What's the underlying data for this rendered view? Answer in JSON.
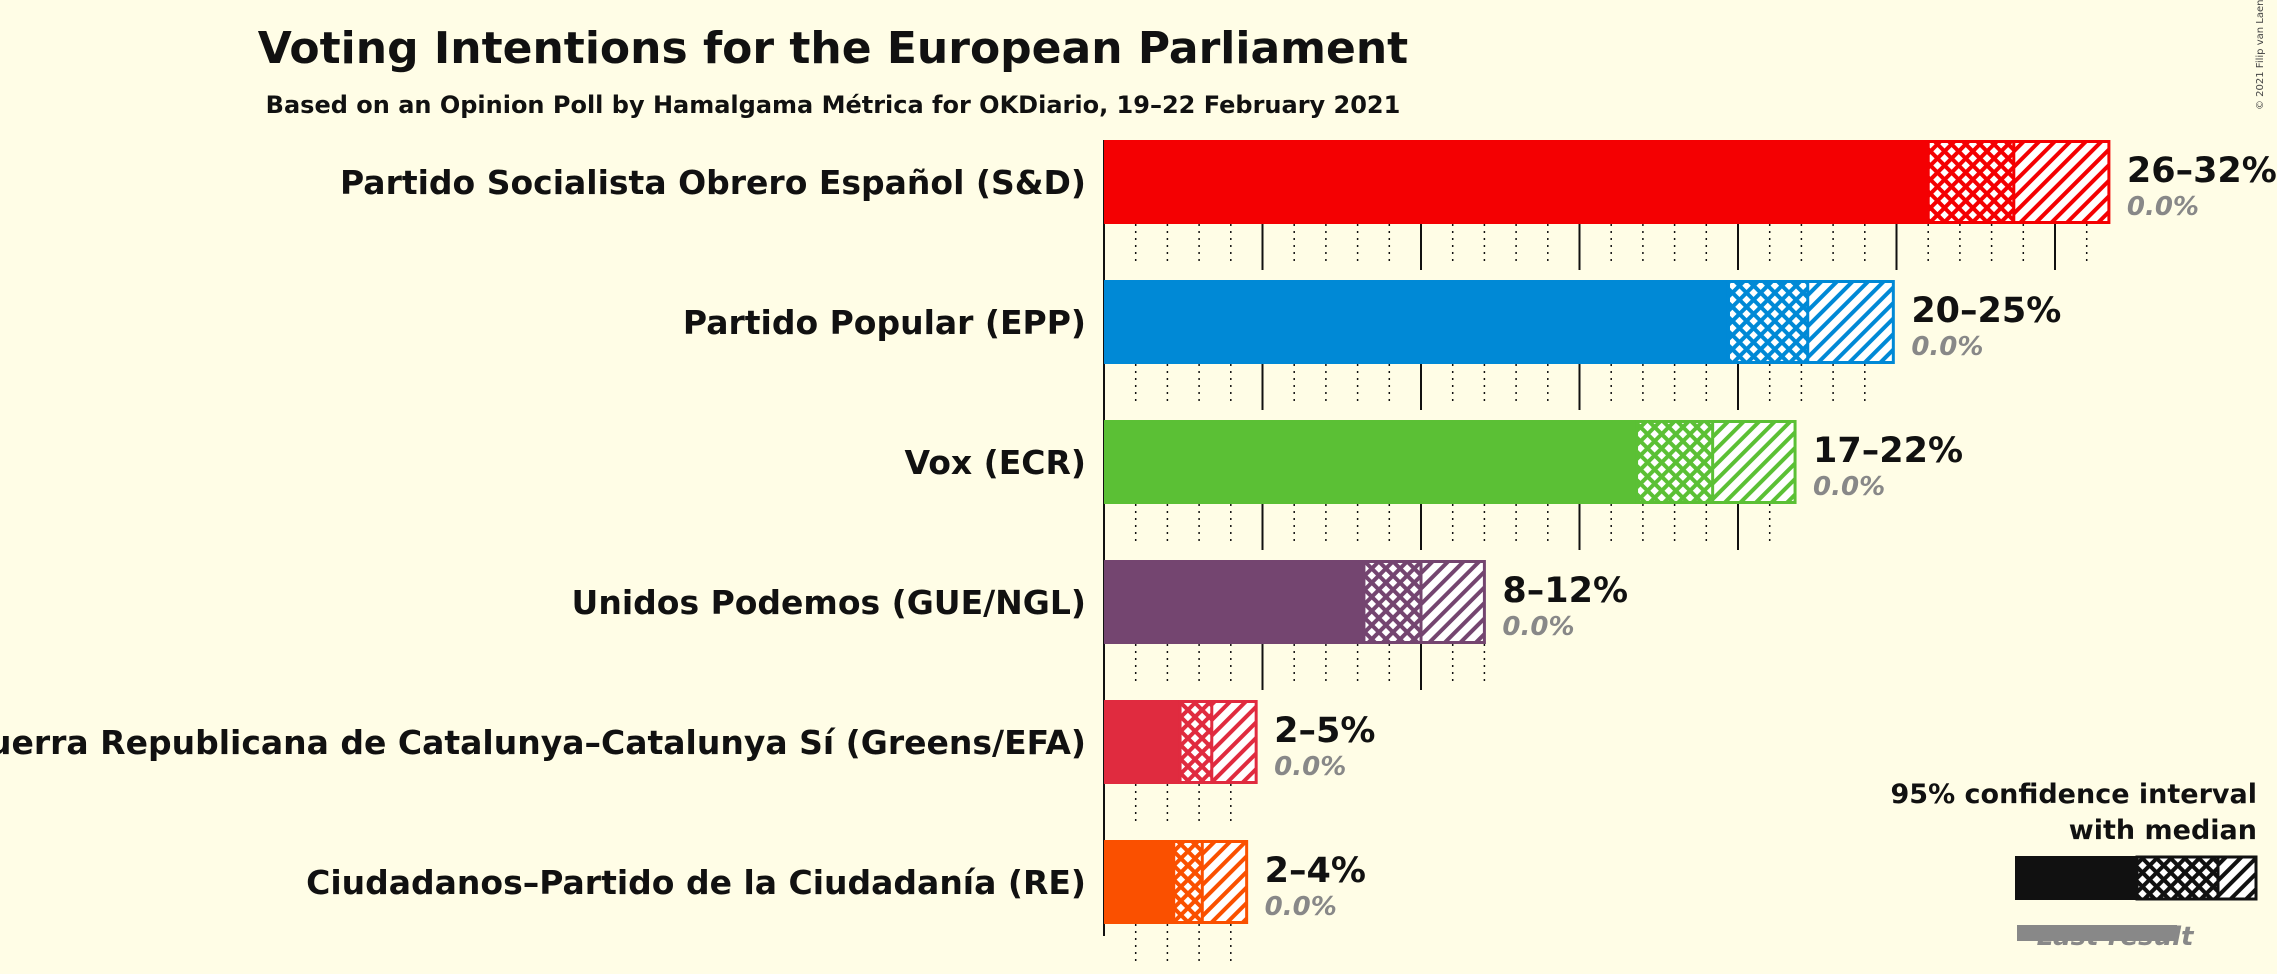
{
  "copyright": "© 2021 Filip van Laenen",
  "chart_data": {
    "type": "bar",
    "title": "Voting Intentions for the European Parliament",
    "subtitle": "Based on an Opinion Poll by Hamalgama Métrica for OKDiario, 19–22 February 2021",
    "xlim": [
      0,
      32
    ],
    "grid": true,
    "legend": {
      "placement": "bottom-right",
      "ci_label_line1": "95% confidence interval",
      "ci_label_line2": "with median",
      "last_result_label": "Last result"
    },
    "series": [
      {
        "party": "Partido Socialista Obrero Español (S&D)",
        "color": "#f40002",
        "low": 26,
        "median": 28.7,
        "high": 31.7,
        "range_label": "26–32%",
        "last_result": 0.0,
        "last_label": "0.0%"
      },
      {
        "party": "Partido Popular (EPP)",
        "color": "#0089d6",
        "low": 19.7,
        "median": 22.2,
        "high": 24.9,
        "range_label": "20–25%",
        "last_result": 0.0,
        "last_label": "0.0%"
      },
      {
        "party": "Vox (ECR)",
        "color": "#5bc035",
        "low": 16.8,
        "median": 19.2,
        "high": 21.8,
        "range_label": "17–22%",
        "last_result": 0.0,
        "last_label": "0.0%"
      },
      {
        "party": "Unidos Podemos (GUE/NGL)",
        "color": "#744570",
        "low": 8.2,
        "median": 10.0,
        "high": 12.0,
        "range_label": "8–12%",
        "last_result": 0.0,
        "last_label": "0.0%"
      },
      {
        "party": "Esquerra Republicana de Catalunya–Catalunya Sí (Greens/EFA)",
        "color": "#e02b3f",
        "low": 2.4,
        "median": 3.4,
        "high": 4.8,
        "range_label": "2–5%",
        "last_result": 0.0,
        "last_label": "0.0%"
      },
      {
        "party": "Ciudadanos–Partido de la Ciudadanía (RE)",
        "color": "#fa5000",
        "low": 2.2,
        "median": 3.1,
        "high": 4.5,
        "range_label": "2–4%",
        "last_result": 0.0,
        "last_label": "0.0%"
      }
    ]
  }
}
